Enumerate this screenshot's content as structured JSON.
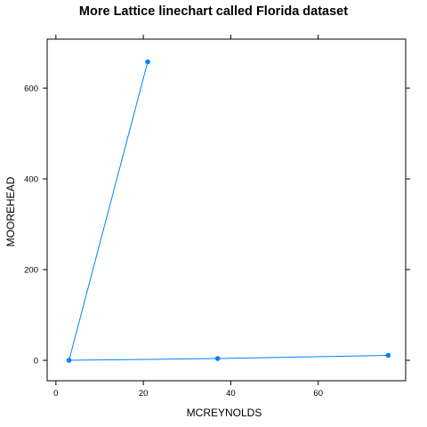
{
  "chart_data": {
    "type": "line",
    "title": "More Lattice linechart called Florida dataset",
    "xlabel": "MCREYNOLDS",
    "ylabel": "MOOREHEAD",
    "xlim": [
      -2,
      80
    ],
    "ylim": [
      -45,
      708
    ],
    "x_ticks": [
      0,
      20,
      40,
      60
    ],
    "y_ticks": [
      0,
      200,
      400,
      600
    ],
    "grid": false,
    "series": [
      {
        "x": [
          21,
          3,
          37,
          76
        ],
        "y": [
          658,
          0,
          4,
          11
        ]
      }
    ],
    "colors": {
      "line": "#0080ff",
      "marker": "#0080ff",
      "frame": "#000000"
    }
  }
}
